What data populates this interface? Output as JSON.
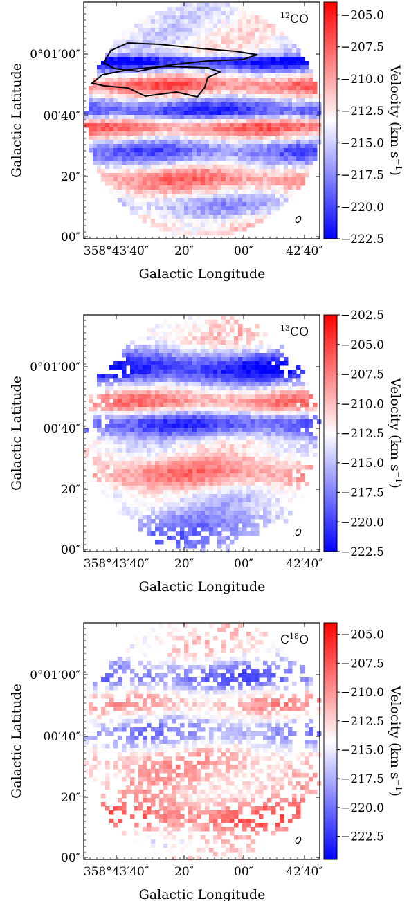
{
  "chart_data": [
    {
      "type": "heatmap",
      "title": "",
      "molecule": {
        "sup": "12",
        "base": "CO",
        "prefix": ""
      },
      "xlabel": "Galactic Longitude",
      "ylabel": "Galactic Latitude",
      "xticks": [
        "358°43′40″",
        "20″",
        "00″",
        "42′40″"
      ],
      "yticks": [
        "0°01′00″",
        "00′40″",
        "20″",
        "00″"
      ],
      "colorbar": {
        "label": "Velocity (km s",
        "label_sup": "−1",
        "label_end": ")",
        "ticks": [
          "−205.0",
          "−207.5",
          "−210.0",
          "−212.5",
          "−215.0",
          "−217.5",
          "−220.0",
          "−222.5"
        ],
        "range": [
          -222.5,
          -204.0
        ],
        "cmap": "bwr",
        "low_color": "#0000ff",
        "mid_color": "#ffffff",
        "high_color": "#ff0000"
      },
      "features": {
        "contours": true,
        "coverage": "full",
        "bands": [
          {
            "y": 0.2,
            "v": -213.5
          },
          {
            "y": 0.24,
            "v": -221.5
          },
          {
            "y": 0.34,
            "v": -208.0
          },
          {
            "y": 0.45,
            "v": -220.0
          },
          {
            "y": 0.52,
            "v": -208.5
          },
          {
            "y": 0.62,
            "v": -218.5
          },
          {
            "y": 0.74,
            "v": -209.0
          },
          {
            "y": 0.85,
            "v": -216.0
          },
          {
            "y": 0.95,
            "v": -211.5
          }
        ]
      }
    },
    {
      "type": "heatmap",
      "title": "",
      "molecule": {
        "sup": "13",
        "base": "CO",
        "prefix": ""
      },
      "xlabel": "Galactic Longitude",
      "ylabel": "Galactic Latitude",
      "xticks": [
        "358°43′40″",
        "20″",
        "00″",
        "42′40″"
      ],
      "yticks": [
        "0°01′00″",
        "00′40″",
        "20″",
        "00″"
      ],
      "colorbar": {
        "label": "Velocity (km s",
        "label_sup": "−1",
        "label_end": ")",
        "ticks": [
          "−202.5",
          "−205.0",
          "−207.5",
          "−210.0",
          "−212.5",
          "−215.0",
          "−217.5",
          "−220.0",
          "−222.5"
        ],
        "range": [
          -222.5,
          -202.5
        ],
        "cmap": "bwr",
        "low_color": "#0000ff",
        "mid_color": "#ffffff",
        "high_color": "#ff0000"
      },
      "features": {
        "contours": false,
        "coverage": "ragged",
        "bands": [
          {
            "y": 0.08,
            "v": -211.0
          },
          {
            "y": 0.22,
            "v": -221.0
          },
          {
            "y": 0.36,
            "v": -208.0
          },
          {
            "y": 0.45,
            "v": -219.5
          },
          {
            "y": 0.55,
            "v": -212.5
          },
          {
            "y": 0.66,
            "v": -208.0
          },
          {
            "y": 0.78,
            "v": -214.0
          },
          {
            "y": 0.9,
            "v": -217.0
          }
        ]
      }
    },
    {
      "type": "heatmap",
      "title": "",
      "molecule": {
        "sup": "18",
        "base": "O",
        "prefix": "C"
      },
      "xlabel": "Galactic Longitude",
      "ylabel": "Galactic Latitude",
      "xticks": [
        "358°43′40″",
        "20″",
        "00″",
        "42′40″"
      ],
      "yticks": [
        "0°01′00″",
        "00′40″",
        "20″",
        "00″"
      ],
      "colorbar": {
        "label": "Velocity (km s",
        "label_sup": "−1",
        "label_end": ")",
        "ticks": [
          "−205.0",
          "−207.5",
          "−210.0",
          "−212.5",
          "−215.0",
          "−217.5",
          "−220.0",
          "−222.5"
        ],
        "range": [
          -224.5,
          -204.0
        ],
        "cmap": "bwr",
        "low_color": "#0000ff",
        "mid_color": "#ffffff",
        "high_color": "#ff0000"
      },
      "features": {
        "contours": false,
        "coverage": "sparse",
        "bands": [
          {
            "y": 0.1,
            "v": -213.0
          },
          {
            "y": 0.22,
            "v": -220.0
          },
          {
            "y": 0.33,
            "v": -211.0
          },
          {
            "y": 0.45,
            "v": -218.5
          },
          {
            "y": 0.58,
            "v": -211.0
          },
          {
            "y": 0.7,
            "v": -212.0
          },
          {
            "y": 0.82,
            "v": -208.5
          },
          {
            "y": 0.92,
            "v": -213.5
          }
        ]
      }
    }
  ]
}
